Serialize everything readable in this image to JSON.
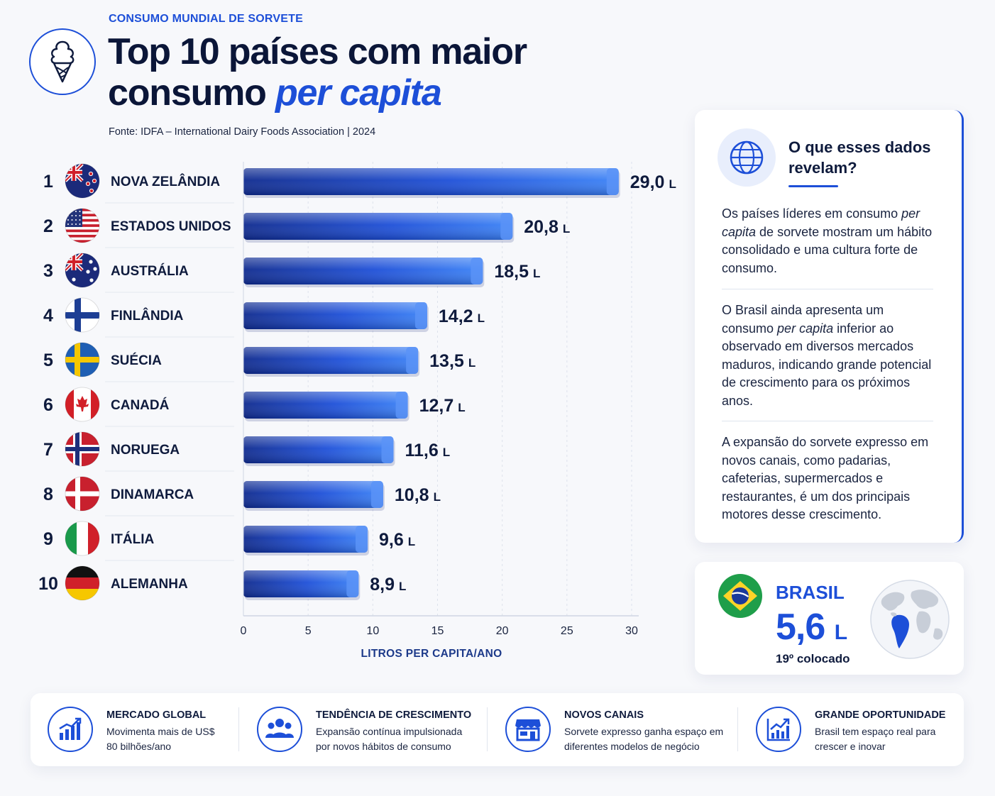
{
  "header": {
    "eyebrow": "CONSUMO MUNDIAL DE SORVETE",
    "title_line1": "Top 10 países com maior",
    "title_line2_plain": "consumo ",
    "title_line2_accent": "per capita",
    "source": "Fonte: IDFA – International Dairy Foods Association | 2024",
    "logo_icon": "ice-cream-cone-icon"
  },
  "chart_data": {
    "type": "bar",
    "orientation": "horizontal",
    "categories": [
      "NOVA ZELÂNDIA",
      "ESTADOS UNIDOS",
      "AUSTRÁLIA",
      "FINLÂNDIA",
      "SUÉCIA",
      "CANADÁ",
      "NORUEGA",
      "DINAMARCA",
      "ITÁLIA",
      "ALEMANHA"
    ],
    "ranks": [
      "1",
      "2",
      "3",
      "4",
      "5",
      "6",
      "7",
      "8",
      "9",
      "10"
    ],
    "values": [
      29.0,
      20.8,
      18.5,
      14.2,
      13.5,
      12.7,
      11.6,
      10.8,
      9.6,
      8.9
    ],
    "value_labels": [
      "29,0",
      "20,8",
      "18,5",
      "14,2",
      "13,5",
      "12,7",
      "11,6",
      "10,8",
      "9,6",
      "8,9"
    ],
    "unit": "L",
    "flags": [
      "new-zealand-flag-icon",
      "usa-flag-icon",
      "australia-flag-icon",
      "finland-flag-icon",
      "sweden-flag-icon",
      "canada-flag-icon",
      "norway-flag-icon",
      "denmark-flag-icon",
      "italy-flag-icon",
      "germany-flag-icon"
    ],
    "xlabel": "LITROS PER CAPITA/ANO",
    "ylabel": "",
    "xlim": [
      0,
      30
    ],
    "xticks": [
      0,
      5,
      10,
      15,
      20,
      25,
      30
    ],
    "grid": true,
    "bar_color": "#1d4fd8"
  },
  "insight": {
    "icon": "globe-icon",
    "title": "O que esses dados revelam?",
    "p1": "Os países líderes em consumo per capita de sorvete mostram um hábito consolidado e uma cultura forte de consumo.",
    "p2": "O Brasil ainda apresenta um consumo per capita inferior ao observado em diversos mercados maduros, indicando grande potencial de crescimento para os próximos anos.",
    "p3": "A expansão do sorvete expresso em novos canais, como padarias, cafeterias, supermercados e restaurantes, é um dos principais motores desse crescimento."
  },
  "brasil": {
    "name": "BRASIL",
    "value": "5,6",
    "unit": "L",
    "rank": "19º colocado",
    "flag": "brazil-flag-icon",
    "map_icon": "world-map-icon"
  },
  "features": [
    {
      "icon": "bar-growth-icon",
      "title": "MERCADO GLOBAL",
      "desc": "Movimenta mais de US$ 80 bilhões/ano"
    },
    {
      "icon": "people-group-icon",
      "title": "TENDÊNCIA DE CRESCIMENTO",
      "desc": "Expansão contínua impulsionada por novos hábitos de consumo"
    },
    {
      "icon": "storefront-icon",
      "title": "NOVOS CANAIS",
      "desc": "Sorvete expresso ganha espaço em diferentes modelos de negócio"
    },
    {
      "icon": "chart-up-icon",
      "title": "GRANDE OPORTUNIDADE",
      "desc": "Brasil tem espaço real para crescer e inovar"
    }
  ],
  "colors": {
    "accent": "#1d4fd8",
    "text": "#0f1b3d"
  }
}
